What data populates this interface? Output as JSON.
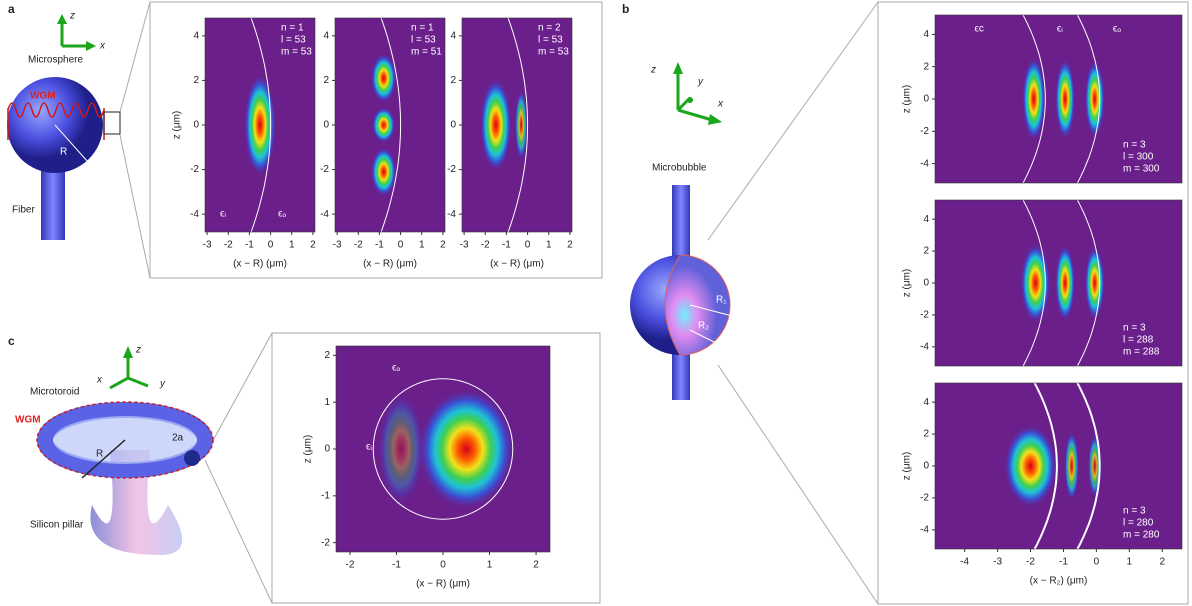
{
  "panel_a": {
    "label": "a",
    "axis_z": "z",
    "axis_x": "x",
    "object": "Microsphere",
    "wgm": "WGM",
    "radius": "R",
    "stem": "Fiber",
    "plots": [
      {
        "annotation": [
          "n = 1",
          "l = 53",
          "m = 53"
        ],
        "media": [
          "ϵᵢ",
          "ϵₒ"
        ],
        "xlim": [
          -3.1,
          2.1
        ],
        "ylim": [
          -4.8,
          4.8
        ],
        "xticks": [
          -3,
          -2,
          -1,
          0,
          1,
          2
        ],
        "yticks": [
          4,
          2,
          0,
          -2,
          -4
        ],
        "xlabel": "(x − R)   (μm)",
        "ylabel": "z (μm)"
      },
      {
        "annotation": [
          "n = 1",
          "l = 53",
          "m = 51"
        ],
        "xlim": [
          -3.1,
          2.1
        ],
        "ylim": [
          -4.8,
          4.8
        ],
        "xticks": [
          -3,
          -2,
          -1,
          0,
          1,
          2
        ],
        "yticks": [
          4,
          2,
          0,
          -2,
          -4
        ],
        "xlabel": "(x − R)   (μm)"
      },
      {
        "annotation": [
          "n = 2",
          "l = 53",
          "m = 53"
        ],
        "xlim": [
          -3.1,
          2.1
        ],
        "ylim": [
          -4.8,
          4.8
        ],
        "xticks": [
          -3,
          -2,
          -1,
          0,
          1,
          2
        ],
        "yticks": [
          4,
          2,
          0,
          -2,
          -4
        ],
        "xlabel": "(x − R)   (μm)"
      }
    ]
  },
  "panel_b": {
    "label": "b",
    "axis_z": "z",
    "axis_y": "y",
    "axis_x": "x",
    "object": "Microbubble",
    "r1": "R₁",
    "r2": "R₂",
    "plots": [
      {
        "media": [
          "ϵc",
          "ϵᵢ",
          "ϵₒ"
        ],
        "annotation": [
          "n = 3",
          "l = 300",
          "m = 300"
        ],
        "xlim": [
          -4.9,
          2.6
        ],
        "ylim": [
          -5.2,
          5.2
        ],
        "yticks": [
          4,
          2,
          0,
          -2,
          -4
        ],
        "ylabel": "z (μm)"
      },
      {
        "annotation": [
          "n = 3",
          "l = 288",
          "m = 288"
        ],
        "xlim": [
          -4.9,
          2.6
        ],
        "ylim": [
          -5.2,
          5.2
        ],
        "yticks": [
          4,
          2,
          0,
          -2,
          -4
        ],
        "ylabel": "z (μm)"
      },
      {
        "annotation": [
          "n = 3",
          "l = 280",
          "m = 280"
        ],
        "xlim": [
          -4.9,
          2.6
        ],
        "ylim": [
          -5.2,
          5.2
        ],
        "yticks": [
          4,
          2,
          0,
          -2,
          -4
        ],
        "xticks": [
          -4,
          -3,
          -2,
          -1,
          0,
          1,
          2
        ],
        "ylabel": "z (μm)",
        "xlabel": "(x − R₂)   (μm)"
      }
    ]
  },
  "panel_c": {
    "label": "c",
    "axis_z": "z",
    "axis_x": "x",
    "axis_y": "y",
    "object": "Microtoroid",
    "wgm": "WGM",
    "radius": "R",
    "minor": "2a",
    "stem": "Silicon pillar",
    "plots": [
      {
        "media": [
          "ϵₒ",
          "ϵᵢ"
        ],
        "xlim": [
          -2.3,
          2.3
        ],
        "ylim": [
          -2.2,
          2.2
        ],
        "xticks": [
          -2,
          -1,
          0,
          1,
          2
        ],
        "yticks": [
          2,
          1,
          0,
          -1,
          -2
        ],
        "xlabel": "(x − R)   (μm)",
        "ylabel": "z (μm)"
      }
    ]
  }
}
